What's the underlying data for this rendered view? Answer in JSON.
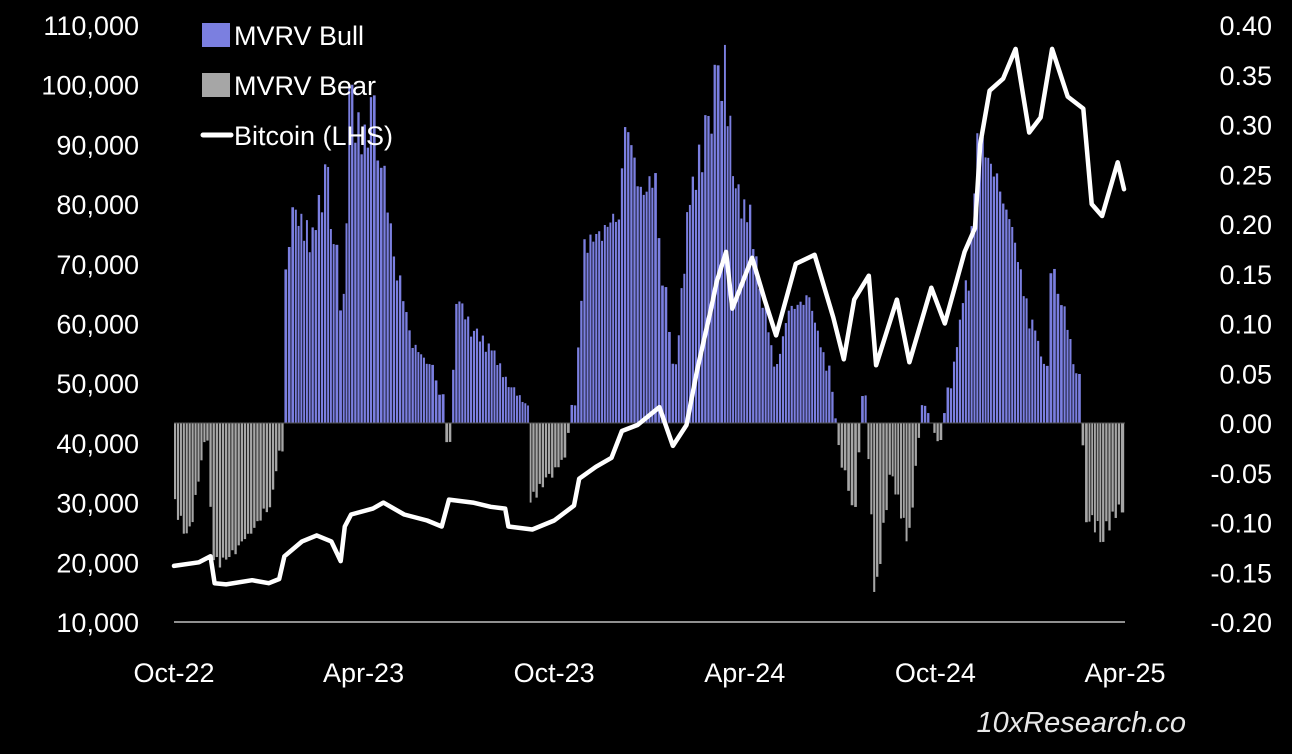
{
  "chart_data": {
    "type": "bar+line",
    "x_tick_labels": [
      "Oct-22",
      "Apr-23",
      "Oct-23",
      "Apr-24",
      "Oct-24",
      "Apr-25"
    ],
    "x_ticks": [
      "2022-10-01",
      "2023-04-01",
      "2023-10-01",
      "2024-04-01",
      "2024-10-01",
      "2025-04-01"
    ],
    "x_range": [
      "2022-10-01",
      "2025-04-01"
    ],
    "y_left": {
      "ylim": [
        10000,
        110000
      ],
      "tick_labels": [
        "10,000",
        "20,000",
        "30,000",
        "40,000",
        "50,000",
        "60,000",
        "70,000",
        "80,000",
        "90,000",
        "100,000",
        "110,000"
      ],
      "ticks": [
        10000,
        20000,
        30000,
        40000,
        50000,
        60000,
        70000,
        80000,
        90000,
        100000,
        110000
      ]
    },
    "y_right": {
      "ylim": [
        -0.2,
        0.4
      ],
      "tick_labels": [
        "-0.20",
        "-0.15",
        "-0.10",
        "-0.05",
        "0.00",
        "0.05",
        "0.10",
        "0.15",
        "0.20",
        "0.25",
        "0.30",
        "0.35",
        "0.40"
      ],
      "ticks": [
        -0.2,
        -0.15,
        -0.1,
        -0.05,
        0.0,
        0.05,
        0.1,
        0.15,
        0.2,
        0.25,
        0.3,
        0.35,
        0.4
      ]
    },
    "legend": [
      {
        "label": "MVRV Bull",
        "color": "#7b7fe0",
        "marker": "square"
      },
      {
        "label": "MVRV Bear",
        "color": "#a6a6a6",
        "marker": "square"
      },
      {
        "label": "Bitcoin (LHS)",
        "color": "#ffffff",
        "marker": "line"
      }
    ],
    "legend_position": "top-left",
    "grid": false,
    "bar_series": {
      "name": "MVRV",
      "axis": "right",
      "positive_color": "#7b7fe0",
      "negative_color": "#a6a6a6",
      "points": [
        [
          "2022-10-01",
          -0.09
        ],
        [
          "2022-10-15",
          -0.12
        ],
        [
          "2022-11-01",
          -0.02
        ],
        [
          "2022-11-10",
          -0.15
        ],
        [
          "2022-11-25",
          -0.14
        ],
        [
          "2022-12-10",
          -0.12
        ],
        [
          "2022-12-31",
          -0.09
        ],
        [
          "2023-01-12",
          -0.03
        ],
        [
          "2023-01-15",
          0.16
        ],
        [
          "2023-01-25",
          0.22
        ],
        [
          "2023-02-10",
          0.2
        ],
        [
          "2023-02-25",
          0.26
        ],
        [
          "2023-03-05",
          0.18
        ],
        [
          "2023-03-12",
          0.13
        ],
        [
          "2023-03-20",
          0.34
        ],
        [
          "2023-04-01",
          0.3
        ],
        [
          "2023-04-10",
          0.33
        ],
        [
          "2023-04-20",
          0.26
        ],
        [
          "2023-05-05",
          0.15
        ],
        [
          "2023-05-20",
          0.08
        ],
        [
          "2023-06-05",
          0.06
        ],
        [
          "2023-06-15",
          0.03
        ],
        [
          "2023-06-22",
          -0.02
        ],
        [
          "2023-07-01",
          0.13
        ],
        [
          "2023-07-15",
          0.1
        ],
        [
          "2023-08-01",
          0.08
        ],
        [
          "2023-08-20",
          0.04
        ],
        [
          "2023-09-05",
          0.02
        ],
        [
          "2023-09-10",
          -0.08
        ],
        [
          "2023-09-25",
          -0.06
        ],
        [
          "2023-10-10",
          -0.04
        ],
        [
          "2023-10-20",
          0.02
        ],
        [
          "2023-11-01",
          0.19
        ],
        [
          "2023-11-15",
          0.2
        ],
        [
          "2023-12-01",
          0.22
        ],
        [
          "2023-12-10",
          0.31
        ],
        [
          "2023-12-25",
          0.24
        ],
        [
          "2024-01-05",
          0.26
        ],
        [
          "2024-01-15",
          0.14
        ],
        [
          "2024-01-25",
          0.06
        ],
        [
          "2024-02-10",
          0.25
        ],
        [
          "2024-02-25",
          0.31
        ],
        [
          "2024-03-05",
          0.36
        ],
        [
          "2024-03-12",
          0.38
        ],
        [
          "2024-03-25",
          0.24
        ],
        [
          "2024-04-05",
          0.22
        ],
        [
          "2024-04-20",
          0.12
        ],
        [
          "2024-05-01",
          0.06
        ],
        [
          "2024-05-15",
          0.12
        ],
        [
          "2024-06-01",
          0.13
        ],
        [
          "2024-06-20",
          0.06
        ],
        [
          "2024-07-05",
          -0.05
        ],
        [
          "2024-07-15",
          -0.09
        ],
        [
          "2024-07-25",
          0.03
        ],
        [
          "2024-08-05",
          -0.17
        ],
        [
          "2024-08-20",
          -0.06
        ],
        [
          "2024-09-05",
          -0.12
        ],
        [
          "2024-09-20",
          0.02
        ],
        [
          "2024-10-05",
          -0.02
        ],
        [
          "2024-10-15",
          0.04
        ],
        [
          "2024-11-01",
          0.15
        ],
        [
          "2024-11-12",
          0.3
        ],
        [
          "2024-11-25",
          0.27
        ],
        [
          "2024-12-10",
          0.22
        ],
        [
          "2025-01-01",
          0.11
        ],
        [
          "2025-01-15",
          0.06
        ],
        [
          "2025-01-22",
          0.16
        ],
        [
          "2025-02-01",
          0.12
        ],
        [
          "2025-02-15",
          0.05
        ],
        [
          "2025-02-25",
          -0.1
        ],
        [
          "2025-03-10",
          -0.12
        ],
        [
          "2025-03-28",
          -0.09
        ]
      ]
    },
    "line_series": {
      "name": "Bitcoin (LHS)",
      "axis": "left",
      "color": "#ffffff",
      "points": [
        [
          "2022-10-01",
          19400
        ],
        [
          "2022-10-25",
          20000
        ],
        [
          "2022-11-05",
          21000
        ],
        [
          "2022-11-09",
          16500
        ],
        [
          "2022-11-20",
          16300
        ],
        [
          "2022-12-15",
          17000
        ],
        [
          "2022-12-31",
          16500
        ],
        [
          "2023-01-10",
          17200
        ],
        [
          "2023-01-15",
          21000
        ],
        [
          "2023-02-01",
          23500
        ],
        [
          "2023-02-15",
          24500
        ],
        [
          "2023-03-01",
          23500
        ],
        [
          "2023-03-10",
          20200
        ],
        [
          "2023-03-14",
          26000
        ],
        [
          "2023-03-20",
          28000
        ],
        [
          "2023-04-10",
          29000
        ],
        [
          "2023-04-20",
          30000
        ],
        [
          "2023-05-10",
          28000
        ],
        [
          "2023-06-01",
          27000
        ],
        [
          "2023-06-15",
          26000
        ],
        [
          "2023-06-22",
          30500
        ],
        [
          "2023-07-15",
          30000
        ],
        [
          "2023-08-01",
          29300
        ],
        [
          "2023-08-15",
          29000
        ],
        [
          "2023-08-18",
          26000
        ],
        [
          "2023-09-10",
          25500
        ],
        [
          "2023-10-01",
          27000
        ],
        [
          "2023-10-20",
          29500
        ],
        [
          "2023-10-25",
          34000
        ],
        [
          "2023-11-10",
          36000
        ],
        [
          "2023-11-25",
          37500
        ],
        [
          "2023-12-05",
          42000
        ],
        [
          "2023-12-20",
          43000
        ],
        [
          "2024-01-10",
          46000
        ],
        [
          "2024-01-23",
          39500
        ],
        [
          "2024-02-05",
          43000
        ],
        [
          "2024-02-15",
          52000
        ],
        [
          "2024-02-28",
          62000
        ],
        [
          "2024-03-05",
          67000
        ],
        [
          "2024-03-14",
          72000
        ],
        [
          "2024-03-20",
          62500
        ],
        [
          "2024-04-08",
          71000
        ],
        [
          "2024-04-20",
          64000
        ],
        [
          "2024-05-01",
          58000
        ],
        [
          "2024-05-20",
          70000
        ],
        [
          "2024-06-07",
          71500
        ],
        [
          "2024-06-25",
          61000
        ],
        [
          "2024-07-05",
          54000
        ],
        [
          "2024-07-15",
          64000
        ],
        [
          "2024-07-29",
          68000
        ],
        [
          "2024-08-05",
          53000
        ],
        [
          "2024-08-25",
          64000
        ],
        [
          "2024-09-06",
          53500
        ],
        [
          "2024-09-27",
          66000
        ],
        [
          "2024-10-10",
          60000
        ],
        [
          "2024-10-29",
          72000
        ],
        [
          "2024-11-08",
          76000
        ],
        [
          "2024-11-13",
          90000
        ],
        [
          "2024-11-22",
          99000
        ],
        [
          "2024-12-05",
          101000
        ],
        [
          "2024-12-17",
          106000
        ],
        [
          "2024-12-30",
          92000
        ],
        [
          "2025-01-10",
          94500
        ],
        [
          "2025-01-21",
          106000
        ],
        [
          "2025-02-05",
          98000
        ],
        [
          "2025-02-20",
          96000
        ],
        [
          "2025-02-28",
          80000
        ],
        [
          "2025-03-10",
          78000
        ],
        [
          "2025-03-25",
          87000
        ],
        [
          "2025-03-31",
          82500
        ]
      ]
    }
  },
  "watermark": "10xResearch.co"
}
